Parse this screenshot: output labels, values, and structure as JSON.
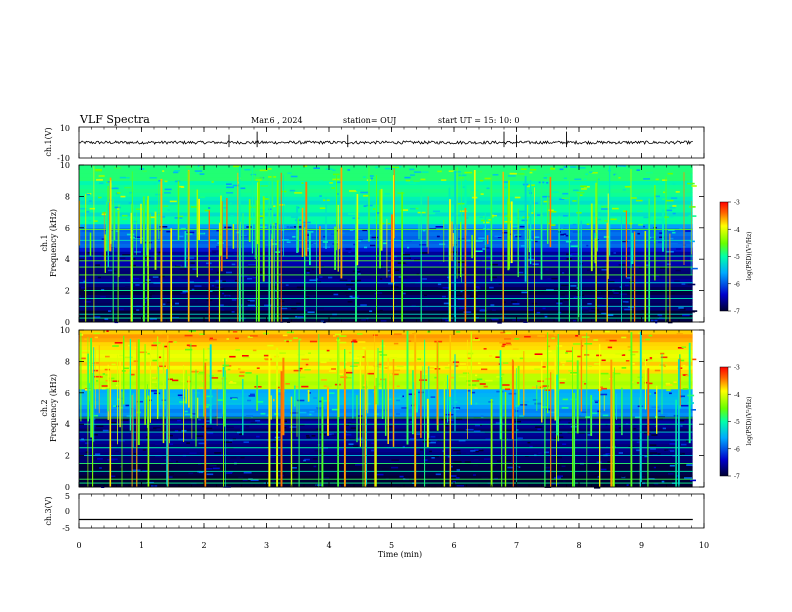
{
  "header": {
    "title": "VLF Spectra",
    "date": "Mar.6 , 2024",
    "station": "station= OUJ",
    "start": "start UT = 15: 10: 0"
  },
  "chart_data": [
    {
      "type": "line",
      "ylabel": "ch.1(V)",
      "ylim": [
        -10,
        10
      ],
      "yticks": [
        "10",
        "-10"
      ],
      "series": [
        {
          "level": 0,
          "noise": 1,
          "spikes": [
            2.4,
            2.85,
            4.3,
            6.8,
            7.0,
            7.8
          ]
        }
      ]
    },
    {
      "type": "heatmap",
      "ylabel": "ch.1\nFrequency (kHz)",
      "ylim": [
        0,
        10
      ],
      "yticks": [
        "0",
        "2",
        "4",
        "6",
        "8",
        "10"
      ],
      "colorbar": {
        "label": "log(PSD)(V^2/Hz)",
        "range": [
          -7,
          -3
        ],
        "ticks": [
          "-3",
          "-4",
          "-5",
          "-6",
          "-7"
        ]
      },
      "bands_khz": [
        0.25,
        0.5,
        1.0,
        1.5,
        2.0,
        2.5,
        3.0,
        3.5,
        3.9,
        4.2,
        5.2,
        5.9
      ],
      "background": {
        "low_freq": -7,
        "mid_freq": -6.2,
        "high_freq": -5.2
      }
    },
    {
      "type": "heatmap",
      "ylabel": "ch.2\nFrequency (kHz)",
      "ylim": [
        0,
        10
      ],
      "yticks": [
        "0",
        "2",
        "4",
        "6",
        "8",
        "10"
      ],
      "colorbar": {
        "label": "log(PSD)(V^2/Hz)",
        "range": [
          -7,
          -3
        ],
        "ticks": [
          "-3",
          "-4",
          "-5",
          "-6",
          "-7"
        ]
      },
      "bands_khz": [
        0.25,
        0.5,
        1.0,
        1.5,
        2.0,
        2.5,
        3.0,
        3.5,
        4.0,
        4.4,
        5.3
      ],
      "background": {
        "low_freq": -7,
        "mid_freq": -5.9,
        "high_freq": -4.1
      }
    },
    {
      "type": "line",
      "ylabel": "ch.3(V)",
      "ylim": [
        -5,
        5
      ],
      "yticks": [
        "5",
        "0",
        "-5"
      ],
      "series": [
        {
          "level": -2.5,
          "noise": 0,
          "spikes": []
        }
      ]
    }
  ],
  "xaxis": {
    "label": "Time (min)",
    "ticks": [
      "0",
      "1",
      "2",
      "3",
      "4",
      "5",
      "6",
      "7",
      "8",
      "9",
      "10"
    ],
    "xlim": [
      0,
      10
    ],
    "data_end": 9.82
  }
}
